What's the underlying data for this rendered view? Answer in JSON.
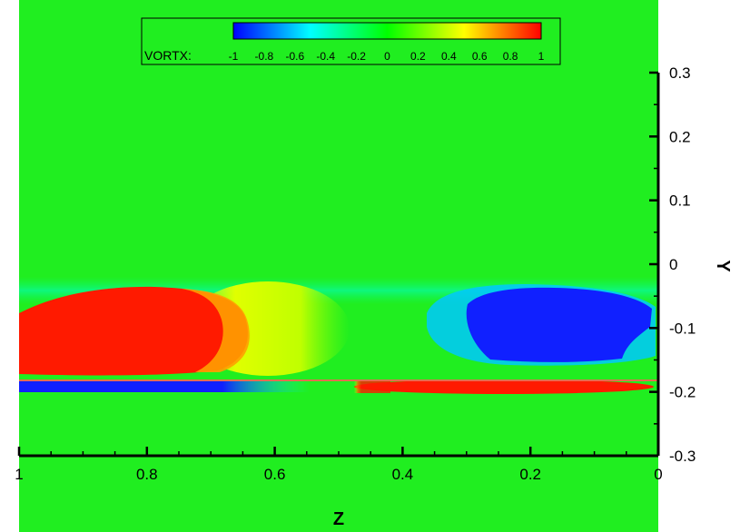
{
  "chart_data": {
    "type": "heatmap",
    "variable": "VORTX:",
    "xlabel": "Z",
    "ylabel": "Y",
    "x_axis_reversed": true,
    "xlim": [
      1,
      0
    ],
    "ylim": [
      -0.3,
      0.3
    ],
    "x_ticks": [
      "1",
      "0.8",
      "0.6",
      "0.4",
      "0.2",
      "0"
    ],
    "x_tick_values": [
      1,
      0.8,
      0.6,
      0.4,
      0.2,
      0
    ],
    "y_ticks": [
      "0.3",
      "0.2",
      "0.1",
      "0",
      "-0.1",
      "-0.2",
      "-0.3"
    ],
    "y_tick_values": [
      0.3,
      0.2,
      0.1,
      0,
      -0.1,
      -0.2,
      -0.3
    ],
    "colorbar": {
      "min": -1,
      "max": 1,
      "labels": [
        "-1",
        "-0.8",
        "-0.6",
        "-0.4",
        "-0.2",
        "0",
        "0.2",
        "0.4",
        "0.6",
        "0.8",
        "1"
      ],
      "label_values": [
        -1,
        -0.8,
        -0.6,
        -0.4,
        -0.2,
        0,
        0.2,
        0.4,
        0.6,
        0.8,
        1
      ],
      "colors": [
        "#0000ff",
        "#00ffff",
        "#00ff00",
        "#ffff00",
        "#ff0000"
      ]
    },
    "background_value": 0,
    "regions": [
      {
        "z_range": [
          1.0,
          0.72
        ],
        "y_range": [
          -0.17,
          -0.04
        ],
        "value": 1
      },
      {
        "z_range": [
          0.72,
          0.62
        ],
        "y_range": [
          -0.16,
          -0.05
        ],
        "value": 0.6
      },
      {
        "z_range": [
          0.38,
          0.05
        ],
        "y_range": [
          -0.15,
          -0.04
        ],
        "value": -1
      },
      {
        "z_range": [
          1.0,
          0.55
        ],
        "y_range": [
          -0.195,
          -0.185
        ],
        "value": -1
      },
      {
        "z_range": [
          0.45,
          0.02
        ],
        "y_range": [
          -0.2,
          -0.18
        ],
        "value": 1
      }
    ],
    "wall_y": -0.18
  }
}
